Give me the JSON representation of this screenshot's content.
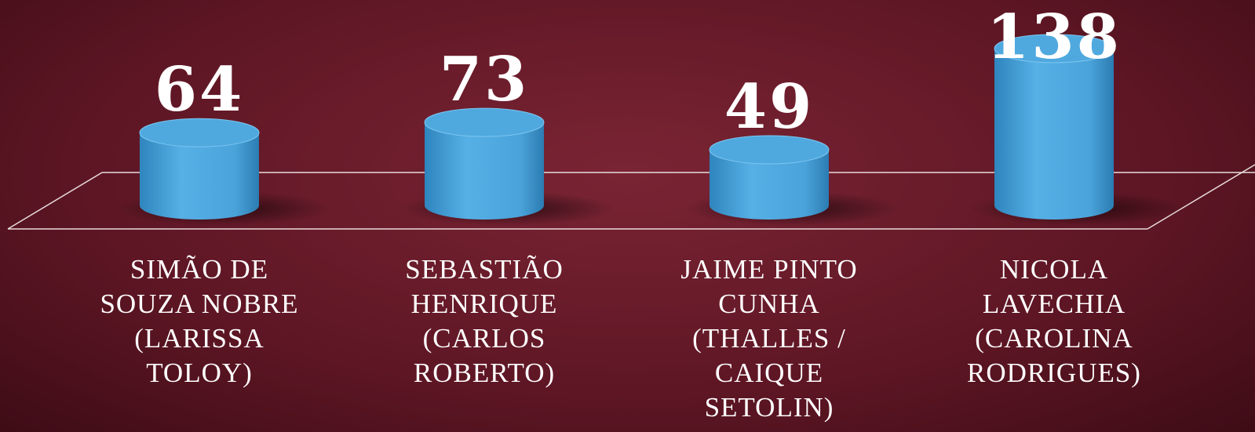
{
  "chart_data": {
    "type": "bar3d",
    "categories": [
      "SIMÃO DE\nSOUZA NOBRE\n(LARISSA\nTOLOY)",
      "SEBASTIÃO\nHENRIQUE\n(CARLOS\nROBERTO)",
      "JAIME PINTO\nCUNHA\n(THALLES  /\nCAIQUE\nSETOLIN)",
      "NICOLA\nLAVECHIA\n(CAROLINA\nRODRIGUES)"
    ],
    "values": [
      64,
      73,
      49,
      138
    ],
    "color": "#4fa9df"
  }
}
